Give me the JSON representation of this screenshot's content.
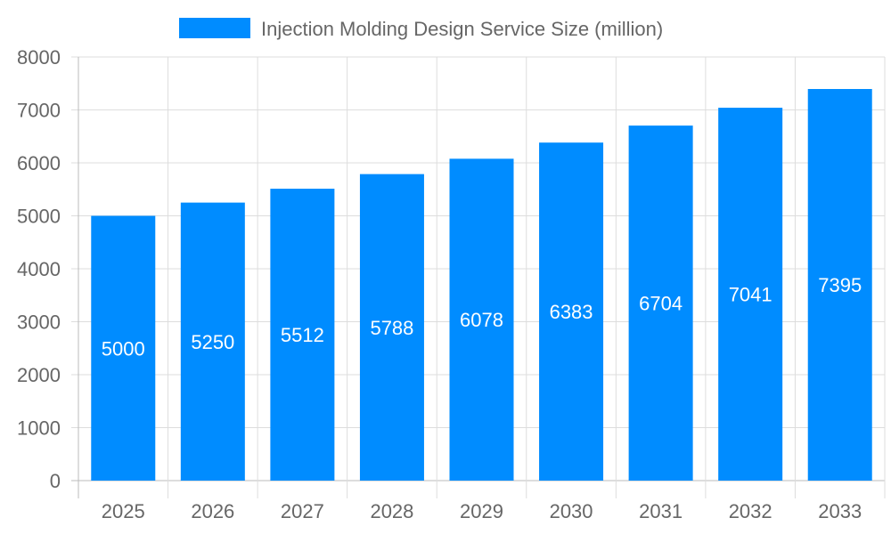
{
  "chart_data": {
    "type": "bar",
    "categories": [
      "2025",
      "2026",
      "2027",
      "2028",
      "2029",
      "2030",
      "2031",
      "2032",
      "2033"
    ],
    "series": [
      {
        "name": "Injection Molding Design Service Size (million)",
        "values": [
          5000,
          5250,
          5512,
          5788,
          6078,
          6383,
          6704,
          7041,
          7395
        ],
        "color": "#008cff"
      }
    ],
    "title": "",
    "xlabel": "",
    "ylabel": "",
    "ylim": [
      0,
      8000
    ],
    "yticks": [
      0,
      1000,
      2000,
      3000,
      4000,
      5000,
      6000,
      7000,
      8000
    ],
    "grid": true,
    "legend": "top-center",
    "data_labels": true
  }
}
